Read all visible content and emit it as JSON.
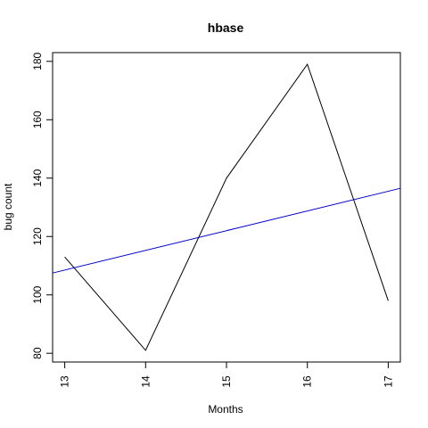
{
  "chart_data": {
    "type": "line",
    "title": "hbase",
    "xlabel": "Months",
    "ylabel": "bug count",
    "xlim": [
      12.85,
      17.15
    ],
    "ylim": [
      77.0,
      183.0
    ],
    "x_ticks": [
      13,
      14,
      15,
      16,
      17
    ],
    "y_ticks": [
      80,
      100,
      120,
      140,
      160,
      180
    ],
    "series": [
      {
        "kind": "data",
        "color": "#000000",
        "x": [
          13,
          14,
          15,
          16,
          17
        ],
        "y": [
          113,
          81,
          140,
          179,
          98
        ]
      },
      {
        "kind": "trend",
        "color": "#0000cc",
        "x": [
          12.85,
          17.15
        ],
        "y": [
          107.5,
          136.5
        ]
      }
    ],
    "grid": false,
    "frame_color": "#000000"
  }
}
